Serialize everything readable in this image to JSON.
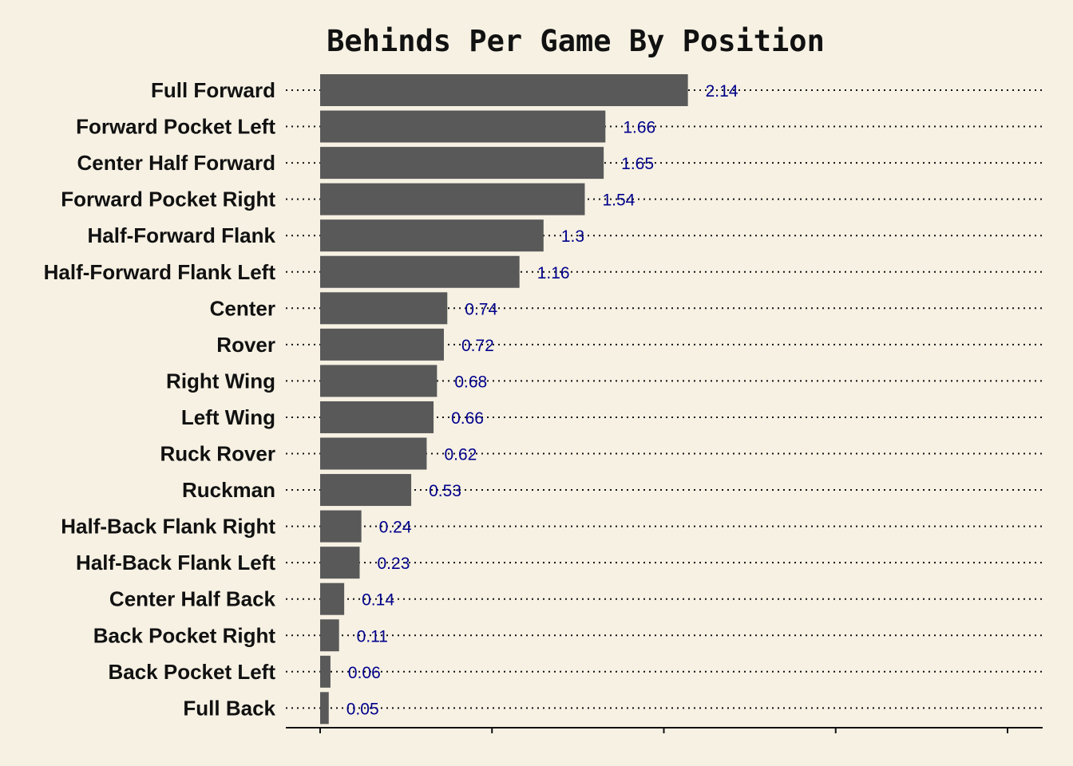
{
  "chart_data": {
    "type": "bar",
    "orientation": "horizontal",
    "title": "Behinds Per Game By Position",
    "xlabel": "",
    "ylabel": "",
    "categories": [
      "Full Forward",
      "Forward Pocket Left",
      "Center Half Forward",
      "Forward Pocket Right",
      "Half-Forward Flank",
      "Half-Forward Flank Left",
      "Center",
      "Rover",
      "Right Wing",
      "Left Wing",
      "Ruck Rover",
      "Ruckman",
      "Half-Back Flank Right",
      "Half-Back Flank Left",
      "Center Half Back",
      "Back Pocket Right",
      "Back Pocket Left",
      "Full Back"
    ],
    "values": [
      2.14,
      1.66,
      1.65,
      1.54,
      1.3,
      1.16,
      0.74,
      0.72,
      0.68,
      0.66,
      0.62,
      0.53,
      0.24,
      0.23,
      0.14,
      0.11,
      0.06,
      0.05
    ],
    "value_labels": [
      "2.14",
      "1.66",
      "1.65",
      "1.54",
      "1.3",
      "1.16",
      "0.74",
      "0.72",
      "0.68",
      "0.66",
      "0.62",
      "0.53",
      "0.24",
      "0.23",
      "0.14",
      "0.11",
      "0.06",
      "0.05"
    ],
    "xlim": [
      0,
      4
    ],
    "x_ticks": [
      0,
      1,
      2,
      3,
      4
    ],
    "x_tick_labels_shown": false,
    "grid": "dotted horizontal lines per category",
    "legend": "none",
    "colors": {
      "background": "#f6f1e3",
      "bar": "#595959",
      "value_label": "#00008b",
      "text": "#111111",
      "grid": "#111111"
    }
  }
}
